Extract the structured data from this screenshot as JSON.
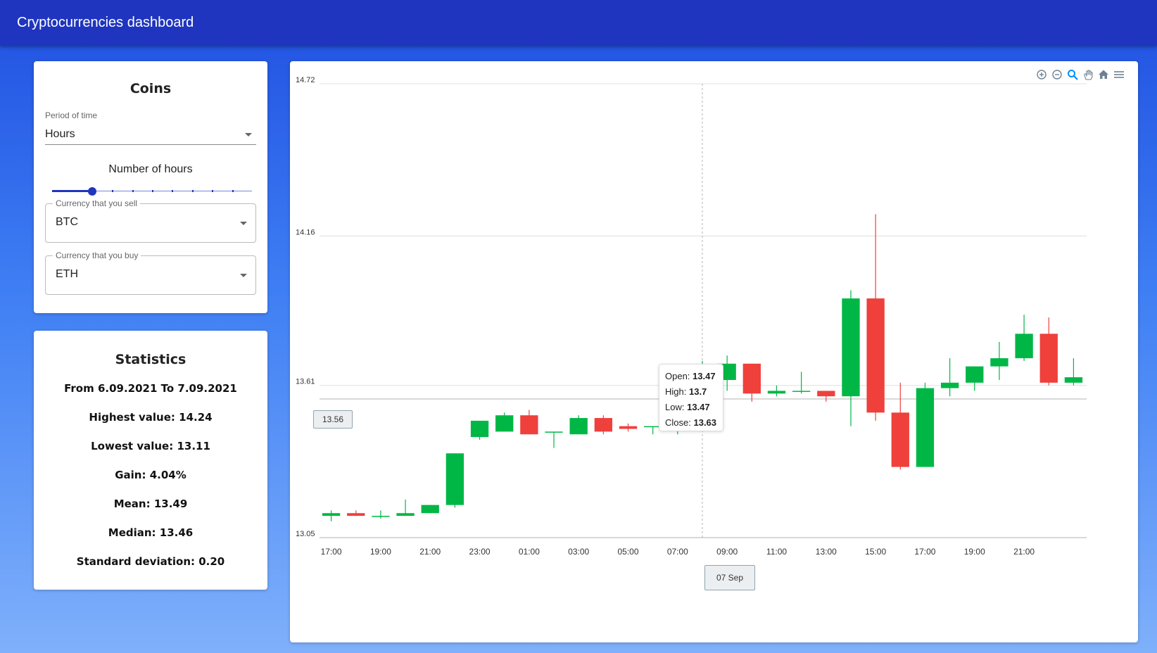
{
  "appbar": {
    "title": "Cryptocurrencies dashboard"
  },
  "coins": {
    "title": "Coins",
    "period": {
      "label": "Period of time",
      "value": "Hours"
    },
    "slider": {
      "label": "Number of hours",
      "level": 0.2,
      "steps": 10
    },
    "sell": {
      "label": "Currency that you sell",
      "value": "BTC"
    },
    "buy": {
      "label": "Currency that you buy",
      "value": "ETH"
    }
  },
  "statistics": {
    "title": "Statistics",
    "range": "From 6.09.2021 To 7.09.2021",
    "highest": "Highest value: 14.24",
    "lowest": "Lowest value: 13.11",
    "gain": "Gain: 4.04%",
    "mean": "Mean: 13.49",
    "median": "Median: 13.46",
    "std": "Standard deviation: 0.20"
  },
  "toolbar": {
    "icons": [
      "zoom-in-icon",
      "zoom-out-icon",
      "zoom-selection-icon",
      "pan-hand-icon",
      "home-icon",
      "menu-icon"
    ]
  },
  "tooltip": {
    "open_label": "Open:",
    "open": "13.47",
    "high_label": "High:",
    "high": "13.7",
    "low_label": "Low:",
    "low": "13.47",
    "close_label": "Close:",
    "close": "13.63"
  },
  "crosshair": {
    "y_value": "13.56",
    "x_label": "07 Sep"
  },
  "chart_data": {
    "type": "candlestick",
    "y_ticks": [
      "14.72",
      "14.16",
      "13.61",
      "13.05"
    ],
    "ylim": [
      13.05,
      14.72
    ],
    "x_tick_labels": [
      "17:00",
      "19:00",
      "21:00",
      "23:00",
      "01:00",
      "03:00",
      "05:00",
      "07:00",
      "09:00",
      "11:00",
      "13:00",
      "15:00",
      "17:00",
      "19:00",
      "21:00"
    ],
    "up_color": "#00b746",
    "down_color": "#ef403c",
    "candles": [
      {
        "t": "17:00",
        "o": 13.13,
        "h": 13.15,
        "l": 13.11,
        "c": 13.14
      },
      {
        "t": "18:00",
        "o": 13.14,
        "h": 13.15,
        "l": 13.13,
        "c": 13.13
      },
      {
        "t": "19:00",
        "o": 13.13,
        "h": 13.15,
        "l": 13.12,
        "c": 13.13
      },
      {
        "t": "20:00",
        "o": 13.13,
        "h": 13.19,
        "l": 13.13,
        "c": 13.14
      },
      {
        "t": "21:00",
        "o": 13.14,
        "h": 13.17,
        "l": 13.14,
        "c": 13.17
      },
      {
        "t": "22:00",
        "o": 13.17,
        "h": 13.36,
        "l": 13.16,
        "c": 13.36
      },
      {
        "t": "23:00",
        "o": 13.42,
        "h": 13.48,
        "l": 13.41,
        "c": 13.48
      },
      {
        "t": "00:00",
        "o": 13.44,
        "h": 13.51,
        "l": 13.44,
        "c": 13.5
      },
      {
        "t": "01:00",
        "o": 13.5,
        "h": 13.52,
        "l": 13.43,
        "c": 13.43
      },
      {
        "t": "02:00",
        "o": 13.44,
        "h": 13.44,
        "l": 13.38,
        "c": 13.44
      },
      {
        "t": "03:00",
        "o": 13.43,
        "h": 13.5,
        "l": 13.43,
        "c": 13.49
      },
      {
        "t": "04:00",
        "o": 13.49,
        "h": 13.5,
        "l": 13.43,
        "c": 13.44
      },
      {
        "t": "05:00",
        "o": 13.46,
        "h": 13.47,
        "l": 13.44,
        "c": 13.45
      },
      {
        "t": "06:00",
        "o": 13.46,
        "h": 13.46,
        "l": 13.43,
        "c": 13.46
      },
      {
        "t": "07:00",
        "o": 13.46,
        "h": 13.51,
        "l": 13.43,
        "c": 13.5
      },
      {
        "t": "08:00",
        "o": 13.47,
        "h": 13.7,
        "l": 13.47,
        "c": 13.63
      },
      {
        "t": "09:00",
        "o": 13.63,
        "h": 13.72,
        "l": 13.59,
        "c": 13.69
      },
      {
        "t": "10:00",
        "o": 13.69,
        "h": 13.69,
        "l": 13.55,
        "c": 13.58
      },
      {
        "t": "11:00",
        "o": 13.58,
        "h": 13.61,
        "l": 13.57,
        "c": 13.59
      },
      {
        "t": "12:00",
        "o": 13.59,
        "h": 13.66,
        "l": 13.58,
        "c": 13.59
      },
      {
        "t": "13:00",
        "o": 13.59,
        "h": 13.59,
        "l": 13.55,
        "c": 13.57
      },
      {
        "t": "14:00",
        "o": 13.57,
        "h": 13.96,
        "l": 13.46,
        "c": 13.93
      },
      {
        "t": "15:00",
        "o": 13.93,
        "h": 14.24,
        "l": 13.48,
        "c": 13.51
      },
      {
        "t": "16:00",
        "o": 13.51,
        "h": 13.62,
        "l": 13.3,
        "c": 13.31
      },
      {
        "t": "17:00",
        "o": 13.31,
        "h": 13.62,
        "l": 13.31,
        "c": 13.6
      },
      {
        "t": "18:00",
        "o": 13.6,
        "h": 13.71,
        "l": 13.57,
        "c": 13.62
      },
      {
        "t": "19:00",
        "o": 13.62,
        "h": 13.68,
        "l": 13.59,
        "c": 13.68
      },
      {
        "t": "20:00",
        "o": 13.68,
        "h": 13.77,
        "l": 13.63,
        "c": 13.71
      },
      {
        "t": "21:00",
        "o": 13.71,
        "h": 13.87,
        "l": 13.7,
        "c": 13.8
      },
      {
        "t": "22:00",
        "o": 13.8,
        "h": 13.86,
        "l": 13.61,
        "c": 13.62
      },
      {
        "t": "23:00",
        "o": 13.62,
        "h": 13.71,
        "l": 13.61,
        "c": 13.64
      }
    ]
  }
}
